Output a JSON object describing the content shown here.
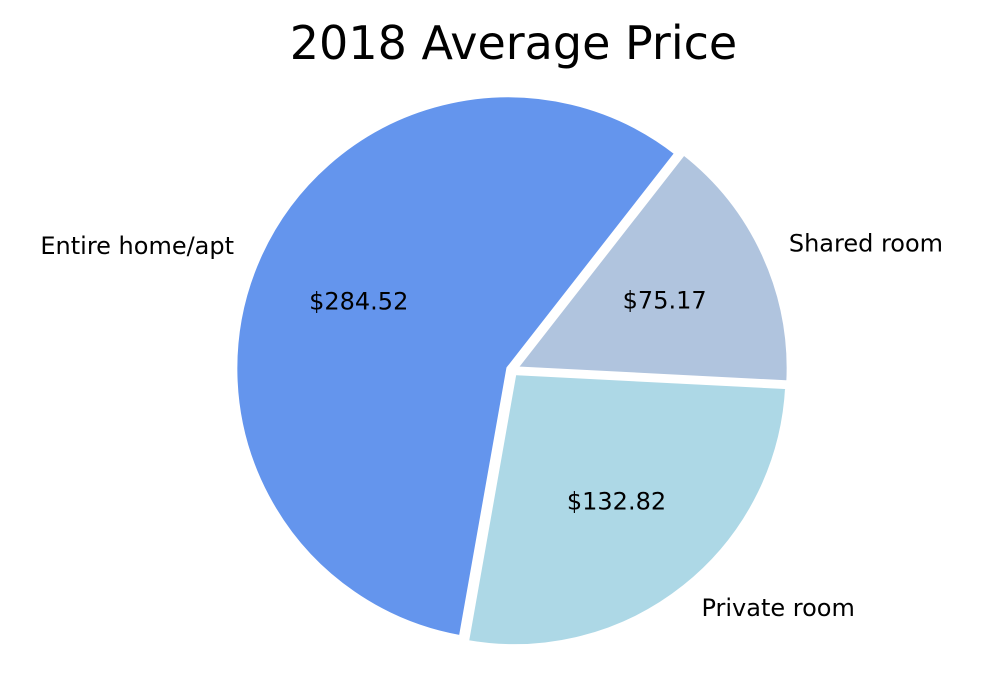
{
  "chart_data": {
    "type": "pie",
    "title": "2018 Average Price",
    "categories": [
      "Entire home/apt",
      "Private room",
      "Shared room"
    ],
    "values": [
      284.52,
      132.82,
      75.17
    ],
    "value_labels": [
      "$284.52",
      "$132.82",
      "$75.17"
    ],
    "colors": [
      "#6495ed",
      "#add8e6",
      "#b0c4de"
    ],
    "start_angle_deg": 52,
    "legend": "none"
  }
}
